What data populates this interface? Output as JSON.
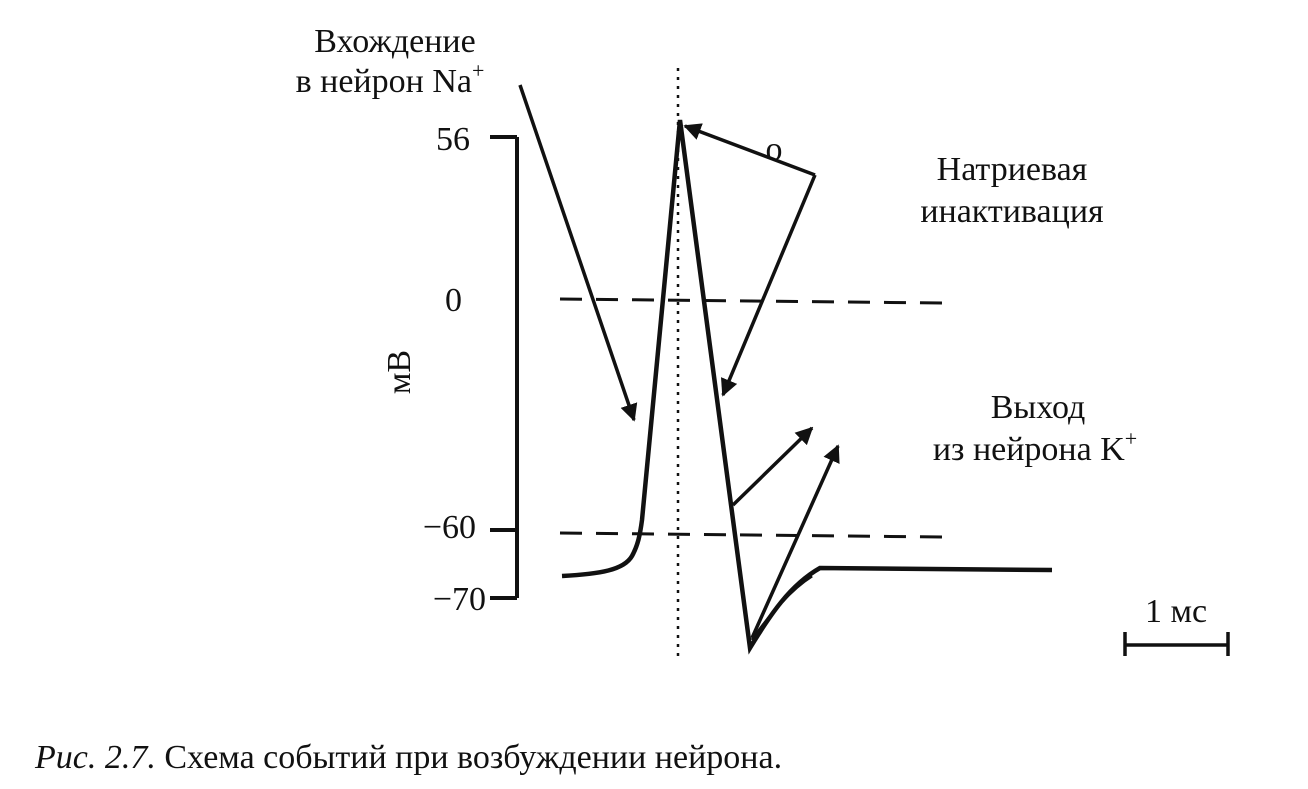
{
  "labels": {
    "na_entry": {
      "line1": "Вхождение",
      "line2": "в нейрон Na",
      "sup": "+"
    },
    "inactivation_mark": "o",
    "na_inactivation": {
      "line1": "Натриевая",
      "line2": "инактивация"
    },
    "k_exit": {
      "line1": "Выход",
      "line2": "из нейрона K",
      "sup": "+"
    },
    "y_axis": "мВ",
    "y_ticks": [
      "56",
      "0",
      "−60",
      "−70"
    ],
    "scale_bar": "1 мс"
  },
  "caption": {
    "number": "Рис. 2.7.",
    "text": "Схема событий при возбуждении нейрона."
  }
}
